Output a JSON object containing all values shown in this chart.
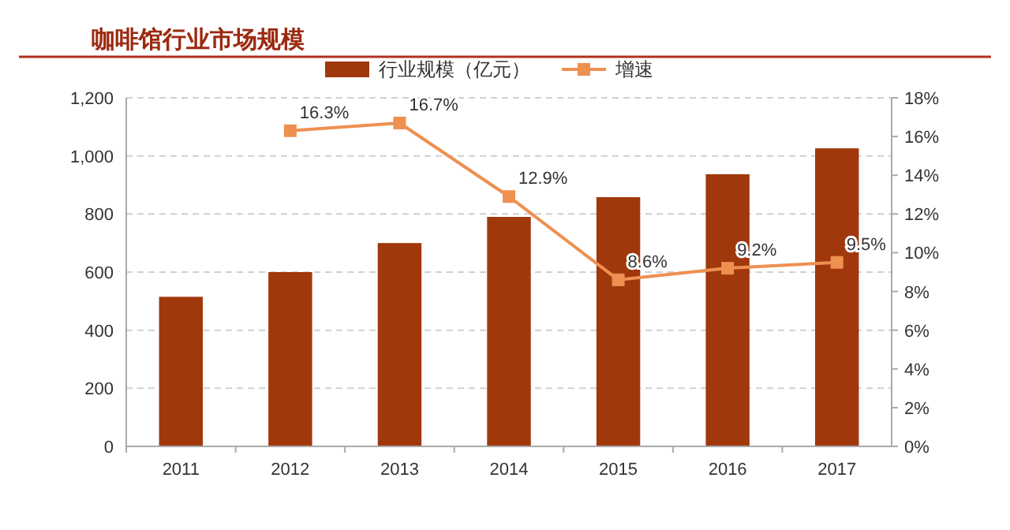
{
  "chart_data": {
    "type": "bar",
    "title": "咖啡馆行业市场规模",
    "categories": [
      "2011",
      "2012",
      "2013",
      "2014",
      "2015",
      "2016",
      "2017"
    ],
    "series": [
      {
        "name": "行业规模（亿元）",
        "color": "#a0380c",
        "values": [
          515,
          600,
          700,
          790,
          858,
          937,
          1026
        ]
      },
      {
        "name": "增速",
        "type": "line",
        "axis": "y2",
        "color": "#ee9050",
        "marker": "square",
        "values": [
          null,
          16.3,
          16.7,
          12.9,
          8.6,
          9.2,
          9.5
        ],
        "value_labels": [
          null,
          "16.3%",
          "16.7%",
          "12.9%",
          "8.6%",
          "9.2%",
          "9.5%"
        ]
      }
    ],
    "ylim": [
      0,
      1200
    ],
    "yticks": [
      {
        "value": 0,
        "label": "0"
      },
      {
        "value": 200,
        "label": "200"
      },
      {
        "value": 400,
        "label": "400"
      },
      {
        "value": 600,
        "label": "600"
      },
      {
        "value": 800,
        "label": "800"
      },
      {
        "value": 1000,
        "label": "1,000"
      },
      {
        "value": 1200,
        "label": "1,200"
      }
    ],
    "y2lim": [
      0,
      18
    ],
    "y2ticks": [
      {
        "value": 0,
        "label": "0%"
      },
      {
        "value": 2,
        "label": "2%"
      },
      {
        "value": 4,
        "label": "4%"
      },
      {
        "value": 6,
        "label": "6%"
      },
      {
        "value": 8,
        "label": "8%"
      },
      {
        "value": 10,
        "label": "10%"
      },
      {
        "value": 12,
        "label": "12%"
      },
      {
        "value": 14,
        "label": "14%"
      },
      {
        "value": 16,
        "label": "16%"
      },
      {
        "value": 18,
        "label": "18%"
      }
    ],
    "grid": "y",
    "legend": "top"
  }
}
